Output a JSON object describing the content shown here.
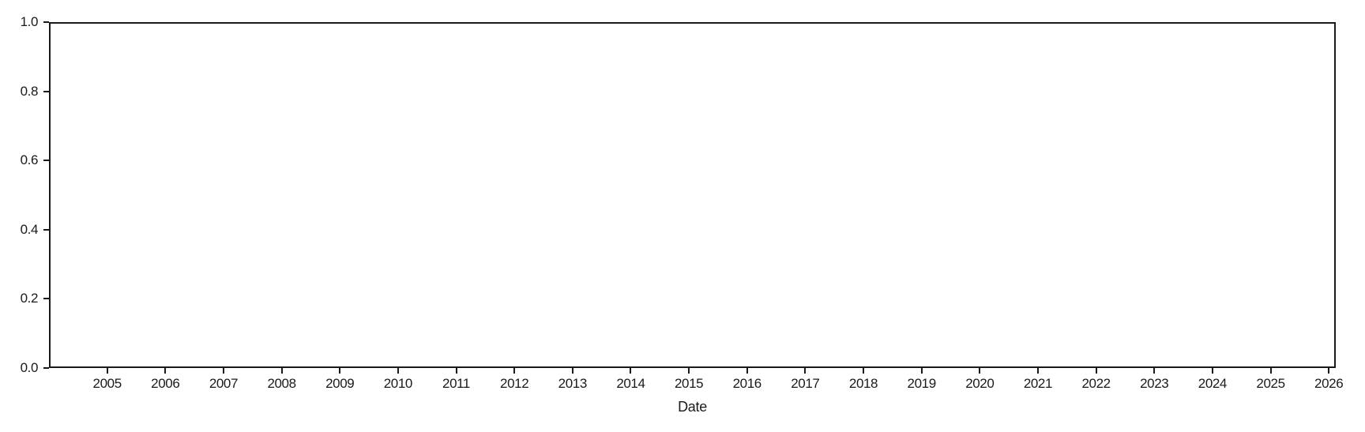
{
  "chart_data": {
    "type": "line",
    "title": "",
    "xlabel": "Date",
    "ylabel": "",
    "series": [],
    "xlim": [
      2004.0,
      2026.12
    ],
    "ylim": [
      0.0,
      1.0
    ],
    "x_tick_values": [
      2005,
      2006,
      2007,
      2008,
      2009,
      2010,
      2011,
      2012,
      2013,
      2014,
      2015,
      2016,
      2017,
      2018,
      2019,
      2020,
      2021,
      2022,
      2023,
      2024,
      2025,
      2026
    ],
    "x_tick_labels": [
      "2005",
      "2006",
      "2007",
      "2008",
      "2009",
      "2010",
      "2011",
      "2012",
      "2013",
      "2014",
      "2015",
      "2016",
      "2017",
      "2018",
      "2019",
      "2020",
      "2021",
      "2022",
      "2023",
      "2024",
      "2025",
      "2026"
    ],
    "y_tick_values": [
      0.0,
      0.2,
      0.4,
      0.6,
      0.8,
      1.0
    ],
    "y_tick_labels": [
      "0.0",
      "0.2",
      "0.4",
      "0.6",
      "0.8",
      "1.0"
    ],
    "grid": false,
    "legend": false
  },
  "colors": {
    "spine": "#1a1a1a",
    "tick_label": "#1a1a1a",
    "background": "#ffffff"
  }
}
